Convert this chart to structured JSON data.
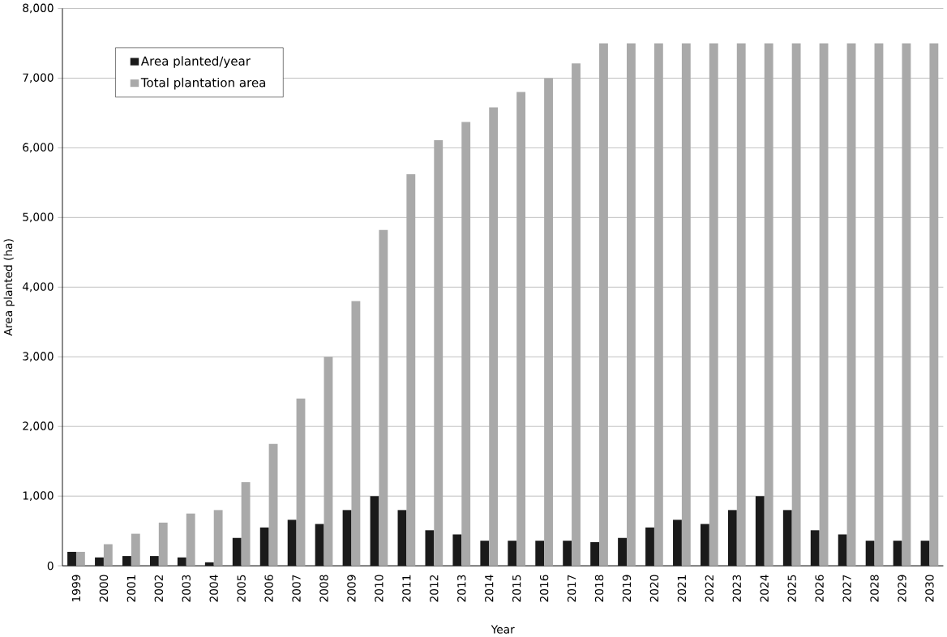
{
  "chart_data": {
    "type": "bar",
    "xlabel": "Year",
    "ylabel": "Area planted (ha)",
    "categories": [
      "1999",
      "2000",
      "2001",
      "2002",
      "2003",
      "2004",
      "2005",
      "2006",
      "2007",
      "2008",
      "2009",
      "2010",
      "2011",
      "2012",
      "2013",
      "2014",
      "2015",
      "2016",
      "2017",
      "2018",
      "2019",
      "2020",
      "2021",
      "2022",
      "2023",
      "2024",
      "2025",
      "2026",
      "2027",
      "2028",
      "2029",
      "2030"
    ],
    "series": [
      {
        "name": "Area planted/year",
        "color": "#1a1a1a",
        "values": [
          200,
          120,
          140,
          140,
          120,
          50,
          400,
          550,
          660,
          600,
          800,
          1000,
          800,
          510,
          450,
          360,
          360,
          360,
          360,
          340,
          400,
          550,
          660,
          600,
          800,
          1000,
          800,
          510,
          450,
          360,
          360,
          360
        ]
      },
      {
        "name": "Total plantation area",
        "color": "#a9a9a9",
        "values": [
          200,
          310,
          460,
          620,
          750,
          800,
          1200,
          1750,
          2400,
          3000,
          3800,
          4820,
          5620,
          6110,
          6370,
          6580,
          6800,
          7000,
          7210,
          7500,
          7500,
          7500,
          7500,
          7500,
          7500,
          7500,
          7500,
          7500,
          7500,
          7500,
          7500,
          7500
        ]
      }
    ],
    "ylim": [
      0,
      8000
    ],
    "yticks": [
      {
        "value": 0,
        "label": "0"
      },
      {
        "value": 1000,
        "label": "1,000"
      },
      {
        "value": 2000,
        "label": "2,000"
      },
      {
        "value": 3000,
        "label": "3,000"
      },
      {
        "value": 4000,
        "label": "4,000"
      },
      {
        "value": 5000,
        "label": "5,000"
      },
      {
        "value": 6000,
        "label": "6,000"
      },
      {
        "value": 7000,
        "label": "7,000"
      },
      {
        "value": 8000,
        "label": "8,000"
      }
    ],
    "grid": "y",
    "legend": "top left"
  }
}
